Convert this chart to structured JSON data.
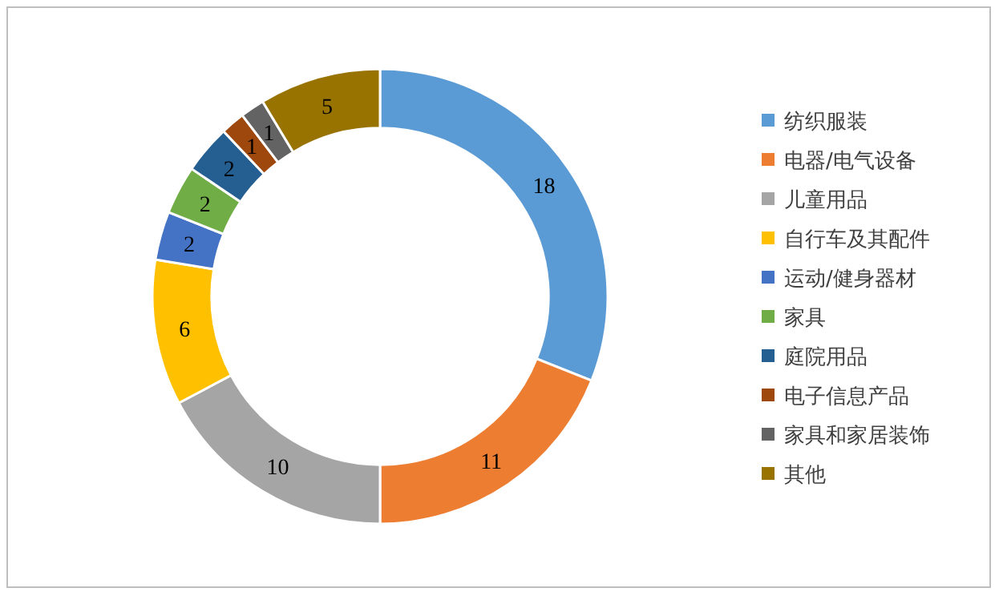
{
  "chart_data": {
    "type": "donut",
    "categories": [
      "纺织服装",
      "电器/电气设备",
      "儿童用品",
      "自行车及其配件",
      "运动/健身器材",
      "家具",
      "庭院用品",
      "电子信息产品",
      "家具和家居装饰",
      "其他"
    ],
    "values": [
      18,
      11,
      10,
      6,
      2,
      2,
      2,
      1,
      1,
      5
    ],
    "colors": [
      "#5b9bd5",
      "#ed7d31",
      "#a5a5a5",
      "#ffc000",
      "#4472c4",
      "#70ad47",
      "#255e91",
      "#9e480e",
      "#636363",
      "#997300"
    ],
    "data_labels": true,
    "legend": "right"
  }
}
